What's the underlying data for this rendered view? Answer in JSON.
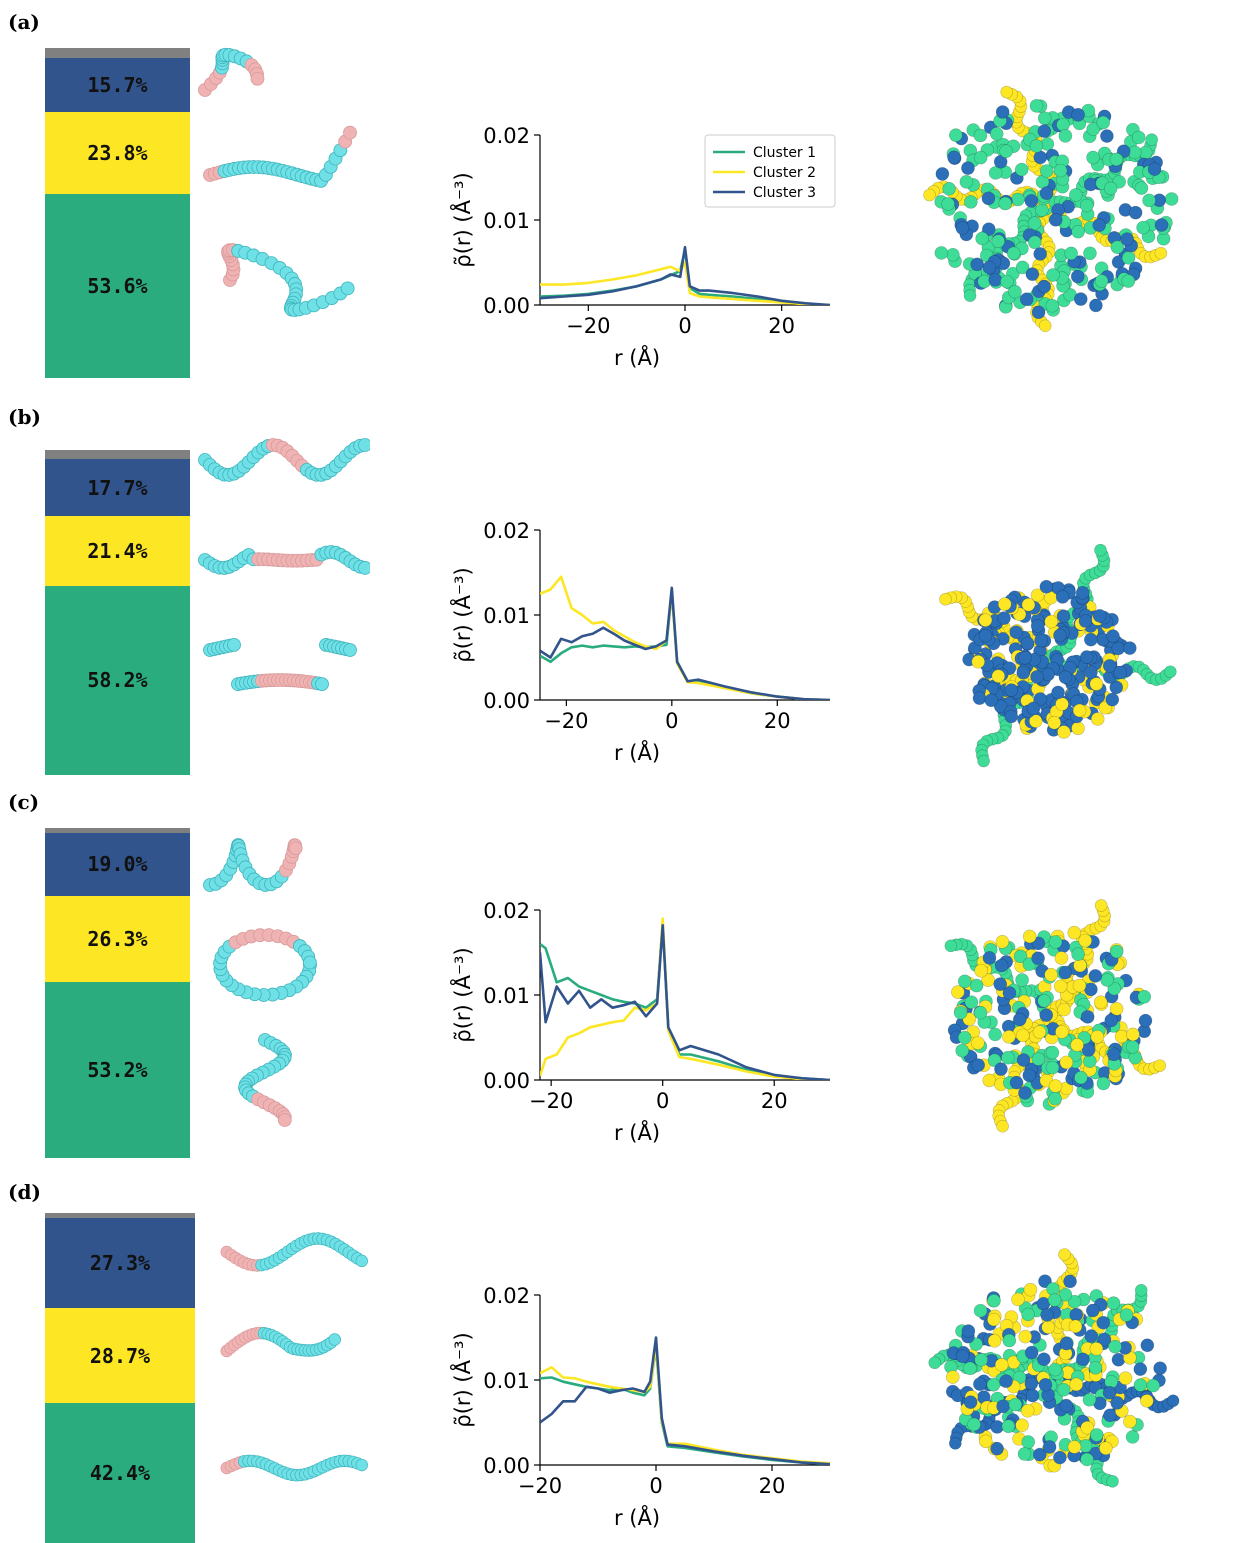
{
  "panels": [
    {
      "label": "(a)",
      "bar": {
        "other": 2.9,
        "c3": 15.7,
        "c2": 23.8,
        "c1": 53.6,
        "labels": {
          "c3": "15.7%",
          "c2": "23.8%",
          "c1": "53.6%"
        }
      },
      "xlim": [
        -30,
        30
      ]
    },
    {
      "label": "(b)",
      "bar": {
        "other": 2.7,
        "c3": 17.7,
        "c2": 21.4,
        "c1": 58.2,
        "labels": {
          "c3": "17.7%",
          "c2": "21.4%",
          "c1": "58.2%"
        }
      },
      "xlim": [
        -25,
        30
      ]
    },
    {
      "label": "(c)",
      "bar": {
        "other": 1.5,
        "c3": 19.0,
        "c2": 26.3,
        "c1": 53.2,
        "labels": {
          "c3": "19.0%",
          "c2": "26.3%",
          "c1": "53.2%"
        }
      },
      "xlim": [
        -22,
        30
      ]
    },
    {
      "label": "(d)",
      "bar": {
        "other": 1.6,
        "c3": 27.3,
        "c2": 28.7,
        "c1": 42.4,
        "labels": {
          "c3": "27.3%",
          "c2": "28.7%",
          "c1": "42.4%"
        }
      },
      "xlim": [
        -20,
        30
      ]
    }
  ],
  "colors": {
    "c1": "#2aac7f",
    "c2": "#fde725",
    "c3": "#31548c",
    "other": "#808080",
    "bead": "#6fe0e6",
    "bead_alt": "#f0b3b3",
    "render_blue": "#2a6fb8",
    "render_green": "#3ddc97"
  },
  "chart_data": [
    {
      "type": "line",
      "xlabel": "r (Å)",
      "ylabel": "ρ̃(r) (Å⁻³)",
      "ylim": [
        0,
        0.02
      ],
      "xlim": [
        -30,
        30
      ],
      "xticks": [
        "−20",
        "0",
        "20"
      ],
      "yticks": [
        "0.00",
        "0.01",
        "0.02"
      ],
      "legend": {
        "placement": "upper-center",
        "entries": [
          "Cluster 1",
          "Cluster 2",
          "Cluster 3"
        ]
      },
      "series": [
        {
          "name": "Cluster 1",
          "color": "#2aac7f",
          "x": [
            -30,
            -25,
            -20,
            -15,
            -10,
            -5,
            -3,
            -1,
            0,
            1,
            3,
            5,
            10,
            15,
            20,
            25,
            30
          ],
          "values": [
            0.001,
            0.0011,
            0.0013,
            0.0017,
            0.0022,
            0.003,
            0.0035,
            0.004,
            0.0065,
            0.002,
            0.0013,
            0.0012,
            0.001,
            0.0007,
            0.0004,
            0.0001,
            0.0
          ]
        },
        {
          "name": "Cluster 2",
          "color": "#fde725",
          "x": [
            -30,
            -25,
            -20,
            -15,
            -10,
            -5,
            -3,
            -1,
            0,
            1,
            3,
            5,
            10,
            15,
            20,
            25,
            30
          ],
          "values": [
            0.0024,
            0.0024,
            0.0026,
            0.003,
            0.0035,
            0.0042,
            0.0045,
            0.004,
            0.005,
            0.0014,
            0.001,
            0.0009,
            0.0007,
            0.0005,
            0.0003,
            0.0001,
            0.0
          ]
        },
        {
          "name": "Cluster 3",
          "color": "#31548c",
          "x": [
            -30,
            -25,
            -20,
            -15,
            -10,
            -5,
            -3,
            -1,
            0,
            1,
            3,
            5,
            10,
            15,
            20,
            25,
            30
          ],
          "values": [
            0.0008,
            0.001,
            0.0012,
            0.0016,
            0.0022,
            0.003,
            0.0036,
            0.0033,
            0.0068,
            0.0022,
            0.0017,
            0.0017,
            0.0014,
            0.001,
            0.0005,
            0.0002,
            0.0
          ]
        }
      ]
    },
    {
      "type": "line",
      "xlabel": "r (Å)",
      "ylabel": "ρ̃(r) (Å⁻³)",
      "ylim": [
        0,
        0.02
      ],
      "xlim": [
        -25,
        30
      ],
      "xticks": [
        "−20",
        "0",
        "20"
      ],
      "yticks": [
        "0.00",
        "0.01",
        "0.02"
      ],
      "series": [
        {
          "name": "Cluster 1",
          "color": "#2aac7f",
          "x": [
            -25,
            -23,
            -21,
            -19,
            -17,
            -15,
            -13,
            -11,
            -9,
            -7,
            -5,
            -3,
            -1,
            0,
            1,
            3,
            5,
            10,
            15,
            20,
            25,
            30
          ],
          "values": [
            0.0052,
            0.0045,
            0.0055,
            0.0062,
            0.0064,
            0.0062,
            0.0064,
            0.0063,
            0.0062,
            0.0063,
            0.0062,
            0.0063,
            0.0065,
            0.0128,
            0.0045,
            0.0022,
            0.0022,
            0.0015,
            0.0008,
            0.0004,
            0.0001,
            0.0
          ]
        },
        {
          "name": "Cluster 2",
          "color": "#fde725",
          "x": [
            -25,
            -23,
            -21,
            -19,
            -17,
            -15,
            -13,
            -11,
            -9,
            -7,
            -5,
            -3,
            -1,
            0,
            1,
            3,
            5,
            10,
            15,
            20,
            25,
            30
          ],
          "values": [
            0.0125,
            0.013,
            0.0145,
            0.0108,
            0.01,
            0.009,
            0.0092,
            0.0082,
            0.0075,
            0.0068,
            0.0063,
            0.006,
            0.007,
            0.0128,
            0.0043,
            0.0021,
            0.002,
            0.0014,
            0.0008,
            0.0004,
            0.0001,
            0.0
          ]
        },
        {
          "name": "Cluster 3",
          "color": "#31548c",
          "x": [
            -25,
            -23,
            -21,
            -19,
            -17,
            -15,
            -13,
            -11,
            -9,
            -7,
            -5,
            -3,
            -1,
            0,
            1,
            3,
            5,
            10,
            15,
            20,
            25,
            30
          ],
          "values": [
            0.0058,
            0.005,
            0.0072,
            0.0068,
            0.0075,
            0.0078,
            0.0085,
            0.0078,
            0.007,
            0.0065,
            0.006,
            0.0063,
            0.007,
            0.0132,
            0.0045,
            0.0022,
            0.0024,
            0.0016,
            0.0009,
            0.0004,
            0.0001,
            0.0
          ]
        }
      ]
    },
    {
      "type": "line",
      "xlabel": "r (Å)",
      "ylabel": "ρ̃(r) (Å⁻³)",
      "ylim": [
        0,
        0.02
      ],
      "xlim": [
        -22,
        30
      ],
      "xticks": [
        "−20",
        "0",
        "20"
      ],
      "yticks": [
        "0.00",
        "0.01",
        "0.02"
      ],
      "series": [
        {
          "name": "Cluster 1",
          "color": "#2aac7f",
          "x": [
            -22,
            -21,
            -19,
            -17,
            -15,
            -13,
            -11,
            -9,
            -7,
            -5,
            -3,
            -1,
            0,
            1,
            3,
            5,
            10,
            15,
            20,
            25,
            30
          ],
          "values": [
            0.016,
            0.0155,
            0.0115,
            0.012,
            0.011,
            0.0105,
            0.01,
            0.0095,
            0.0092,
            0.009,
            0.0085,
            0.0095,
            0.0185,
            0.006,
            0.003,
            0.003,
            0.0022,
            0.0012,
            0.0005,
            0.0002,
            0.0
          ]
        },
        {
          "name": "Cluster 2",
          "color": "#fde725",
          "x": [
            -22,
            -21,
            -19,
            -17,
            -15,
            -13,
            -11,
            -9,
            -7,
            -5,
            -3,
            -1,
            0,
            1,
            3,
            5,
            10,
            15,
            20,
            25,
            30
          ],
          "values": [
            0.0005,
            0.0025,
            0.003,
            0.005,
            0.0055,
            0.0062,
            0.0065,
            0.0068,
            0.007,
            0.0085,
            0.0082,
            0.009,
            0.019,
            0.0058,
            0.0027,
            0.0025,
            0.0018,
            0.001,
            0.0004,
            0.0001,
            0.0
          ]
        },
        {
          "name": "Cluster 3",
          "color": "#31548c",
          "x": [
            -22,
            -21,
            -19,
            -17,
            -15,
            -13,
            -11,
            -9,
            -7,
            -5,
            -3,
            -1,
            0,
            1,
            3,
            5,
            10,
            15,
            20,
            25,
            30
          ],
          "values": [
            0.015,
            0.0068,
            0.011,
            0.009,
            0.0105,
            0.0085,
            0.0095,
            0.0085,
            0.0088,
            0.0092,
            0.0075,
            0.009,
            0.0182,
            0.0062,
            0.0035,
            0.004,
            0.003,
            0.0015,
            0.0006,
            0.0002,
            0.0
          ]
        }
      ]
    },
    {
      "type": "line",
      "xlabel": "r (Å)",
      "ylabel": "ρ̃(r) (Å⁻³)",
      "ylim": [
        0,
        0.02
      ],
      "xlim": [
        -20,
        30
      ],
      "xticks": [
        "−20",
        "0",
        "20"
      ],
      "yticks": [
        "0.00",
        "0.01",
        "0.02"
      ],
      "series": [
        {
          "name": "Cluster 1",
          "color": "#2aac7f",
          "x": [
            -20,
            -18,
            -16,
            -14,
            -12,
            -10,
            -8,
            -6,
            -4,
            -2,
            -1,
            0,
            1,
            2,
            5,
            10,
            15,
            20,
            25,
            30
          ],
          "values": [
            0.0102,
            0.0103,
            0.0098,
            0.0095,
            0.0092,
            0.009,
            0.0088,
            0.009,
            0.0085,
            0.0082,
            0.009,
            0.014,
            0.005,
            0.0022,
            0.002,
            0.0015,
            0.001,
            0.0006,
            0.0003,
            0.0001
          ]
        },
        {
          "name": "Cluster 2",
          "color": "#fde725",
          "x": [
            -20,
            -18,
            -16,
            -14,
            -12,
            -10,
            -8,
            -6,
            -4,
            -2,
            -1,
            0,
            1,
            2,
            5,
            10,
            15,
            20,
            25,
            30
          ],
          "values": [
            0.0108,
            0.0115,
            0.0103,
            0.0102,
            0.0098,
            0.0095,
            0.0092,
            0.009,
            0.0088,
            0.0086,
            0.0092,
            0.0142,
            0.0052,
            0.0025,
            0.0025,
            0.0018,
            0.0012,
            0.0008,
            0.0004,
            0.0002
          ]
        },
        {
          "name": "Cluster 3",
          "color": "#31548c",
          "x": [
            -20,
            -18,
            -16,
            -14,
            -12,
            -10,
            -8,
            -6,
            -4,
            -2,
            -1,
            0,
            1,
            2,
            5,
            10,
            15,
            20,
            25,
            30
          ],
          "values": [
            0.005,
            0.006,
            0.0075,
            0.0075,
            0.0092,
            0.009,
            0.0085,
            0.0088,
            0.009,
            0.0086,
            0.0098,
            0.015,
            0.0055,
            0.0024,
            0.0022,
            0.0016,
            0.0011,
            0.0007,
            0.0003,
            0.0001
          ]
        }
      ]
    }
  ]
}
